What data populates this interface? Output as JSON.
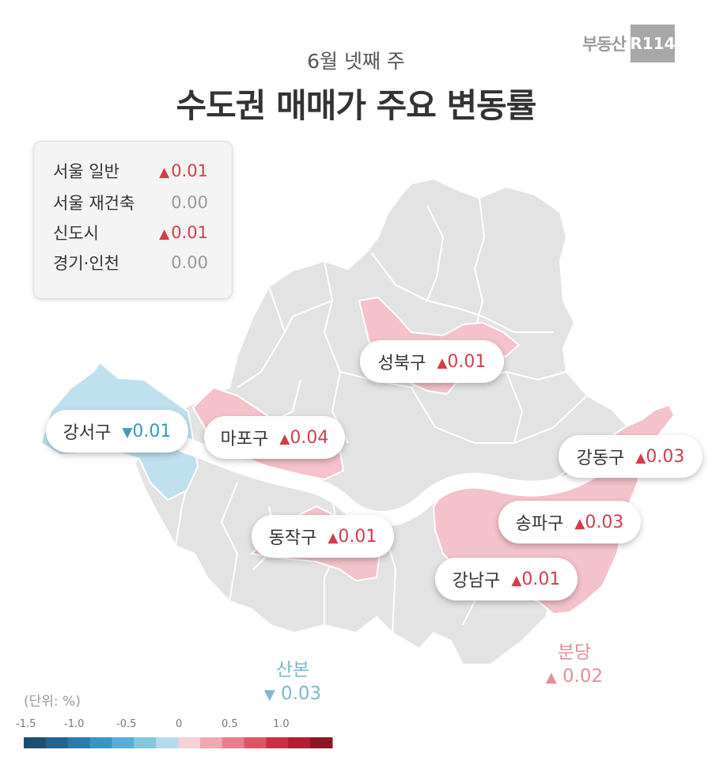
{
  "brand": {
    "name": "부동산",
    "badge": "R114"
  },
  "header": {
    "subtitle": "6월 넷째 주",
    "title": "수도권 매매가 주요 변동률"
  },
  "legend": {
    "items": [
      {
        "label": "서울 일반",
        "value": "0.01",
        "dir": "up"
      },
      {
        "label": "서울 재건축",
        "value": "0.00",
        "dir": "none"
      },
      {
        "label": "신도시",
        "value": "0.01",
        "dir": "up"
      },
      {
        "label": "경기·인천",
        "value": "0.00",
        "dir": "none"
      }
    ]
  },
  "districts": {
    "seongbuk": {
      "name": "성북구",
      "value": "0.01",
      "dir": "up"
    },
    "gangseo": {
      "name": "강서구",
      "value": "0.01",
      "dir": "down"
    },
    "mapo": {
      "name": "마포구",
      "value": "0.04",
      "dir": "up"
    },
    "gangdong": {
      "name": "강동구",
      "value": "0.03",
      "dir": "up"
    },
    "songpa": {
      "name": "송파구",
      "value": "0.03",
      "dir": "up"
    },
    "dongjak": {
      "name": "동작구",
      "value": "0.01",
      "dir": "up"
    },
    "gangnam": {
      "name": "강남구",
      "value": "0.01",
      "dir": "up"
    }
  },
  "outer": {
    "sanbon": {
      "name": "산본",
      "value": "0.03",
      "dir": "down"
    },
    "bundang": {
      "name": "분당",
      "value": "0.02",
      "dir": "up"
    }
  },
  "scale": {
    "unit": "(단위:  %)",
    "ticks": [
      "-1.5",
      "-1.0",
      "-0.5",
      "0",
      "0.5",
      "1.0"
    ],
    "colors": [
      "#1d4f72",
      "#24648f",
      "#2b7cab",
      "#3896c4",
      "#59aed6",
      "#86c6e3",
      "#b5dbee",
      "#f6d1d6",
      "#f0a9b3",
      "#e97f8e",
      "#df5566",
      "#cf2d42",
      "#b41d32",
      "#8e1525"
    ]
  },
  "colors": {
    "up": "#d33d4b",
    "down": "#3a9bb5",
    "land": "#e3e3e3",
    "pink": "#f4c2ca",
    "blue": "#bfe1ef"
  },
  "symbols": {
    "up": "▲",
    "down": "▼"
  }
}
